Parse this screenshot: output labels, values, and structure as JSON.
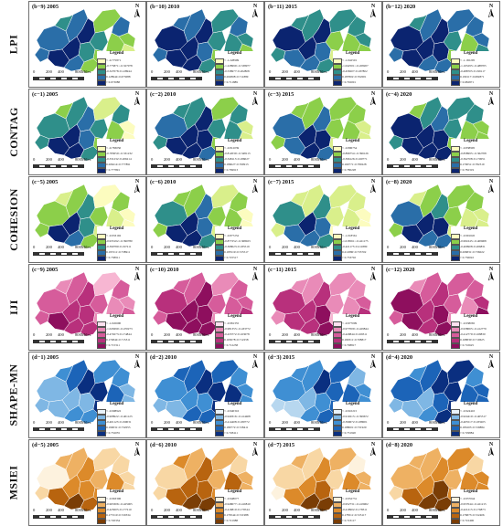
{
  "scale_numbers": [
    "0",
    "200",
    "400",
    "800Miles"
  ],
  "north_label": "N",
  "legend_title": "Legend",
  "rows": [
    {
      "metric": "LPI",
      "colors": [
        "#fcfcbf",
        "#d9ef8b",
        "#8ccf4a",
        "#2f8f8a",
        "#2a6ea8",
        "#0b2470"
      ],
      "panels": [
        {
          "label": "(b−9) 2005",
          "legend": [
            "< -0.775871",
            "-0.775871~-0.327078",
            "-0.327078~0.128944",
            "0.128944~0.673088",
            "> 0.673088"
          ]
        },
        {
          "label": "(b−10) 2010",
          "legend": [
            "< -1.228999",
            "-1.228999~-0.538977",
            "-0.538977~0.202808",
            "0.202808~0.711889",
            "> 0.711889"
          ]
        },
        {
          "label": "(b−11) 2015",
          "legend": [
            "< -1.042501",
            "-1.042501~-0.458207",
            "-0.458207~0.187802",
            "0.187802~0.702001",
            "> 0.702001"
          ]
        },
        {
          "label": "(b−12) 2020",
          "legend": [
            "< -1.165295",
            "-1.165295~-0.488705",
            "-0.488705~0.199117",
            "0.199117~0.682871",
            "> 0.682871"
          ]
        }
      ]
    },
    {
      "metric": "CONTAG",
      "colors": [
        "#fcfcbf",
        "#d9ef8b",
        "#8ccf4a",
        "#2f8f8a",
        "#2a6ea8",
        "#0b2470"
      ],
      "panels": [
        {
          "label": "(c−1) 2005",
          "legend": [
            "< -0.783050",
            "-0.783050~-0.331232",
            "-0.331232~0.206214",
            "0.206214~0.777891",
            "> 0.777891"
          ]
        },
        {
          "label": "(c−2) 2010",
          "legend": [
            "< -0.812039",
            "-0.812039~-0.348113",
            "-0.348113~0.186027",
            "0.186027~0.769913",
            "> 0.769913"
          ]
        },
        {
          "label": "(c−3) 2015",
          "legend": [
            "< -0.896754",
            "-0.896754~-0.396126",
            "-0.396126~0.160771",
            "0.160771~0.780228",
            "> 0.780228"
          ]
        },
        {
          "label": "(c−4) 2020",
          "legend": [
            "< -0.838995",
            "-0.838995~-0.362708",
            "-0.362708~0.170051",
            "0.170051~0.782319",
            "> 0.782319"
          ]
        }
      ]
    },
    {
      "metric": "COHESION",
      "colors": [
        "#fcfcbf",
        "#d9ef8b",
        "#8ccf4a",
        "#2f8f8a",
        "#2a6ea8",
        "#0b2470"
      ],
      "panels": [
        {
          "label": "(c−5) 2005",
          "legend": [
            "< -0.933192",
            "-0.933192~-0.390780",
            "-0.390780~0.197211",
            "0.197211~0.738911",
            "> 0.738911"
          ]
        },
        {
          "label": "(c−6) 2010",
          "legend": [
            "< -0.877252",
            "-0.877252~-0.368023",
            "-0.368023~0.185519",
            "0.185519~0.725517",
            "> 0.725517"
          ]
        },
        {
          "label": "(c−7) 2015",
          "legend": [
            "< -1.018561",
            "-1.018561~-0.421175",
            "-0.421175~0.211880",
            "0.211880~0.733702",
            "> 0.733702"
          ]
        },
        {
          "label": "(c−8) 2020",
          "legend": [
            "< -0.991645",
            "-0.991645~-0.409908",
            "-0.409908~0.206831",
            "0.206831~0.736022",
            "> 0.736022"
          ]
        }
      ]
    },
    {
      "metric": "IJI",
      "colors": [
        "#fde0ef",
        "#f7b6d2",
        "#e98bb8",
        "#d65c9b",
        "#b8307c",
        "#8e0f5e"
      ],
      "panels": [
        {
          "label": "(c−9) 2005",
          "legend": [
            "< -1.045690",
            "-1.045690~-0.470273",
            "-0.470273~0.174844",
            "0.174844~0.715311",
            "> 0.715311"
          ]
        },
        {
          "label": "(c−10) 2010",
          "legend": [
            "< -0.981355",
            "-0.981355~-0.433772",
            "-0.433772~0.163078",
            "0.163078~0.712258",
            "> 0.712258"
          ]
        },
        {
          "label": "(c−11) 2015",
          "legend": [
            "< -0.977009",
            "-0.977009~-0.429844",
            "-0.429844~0.169311",
            "0.169311~0.708817",
            "> 0.708817"
          ]
        },
        {
          "label": "(c−12) 2020",
          "legend": [
            "< -0.938065",
            "-0.938065~-0.412779",
            "-0.412779~0.168830",
            "0.168830~0.710625",
            "> 0.710625"
          ]
        }
      ]
    },
    {
      "metric": "SHAPE-MN",
      "colors": [
        "#eaf3fb",
        "#b7d7ef",
        "#7fb7e4",
        "#3f8fd3",
        "#1c64b8",
        "#0a2f80"
      ],
      "panels": [
        {
          "label": "(d−1) 2005",
          "legend": [
            "< -0.908922",
            "-0.908922~-0.401123",
            "-0.401123~0.190031",
            "0.190031~0.732055",
            "> 0.732055"
          ]
        },
        {
          "label": "(d−2) 2010",
          "legend": [
            "< -0.940316",
            "-0.940316~-0.414408",
            "-0.414408~0.180772",
            "0.180772~0.728411",
            "> 0.728411"
          ]
        },
        {
          "label": "(d−3) 2015",
          "legend": [
            "< -0.910215",
            "-0.910215~-0.399672",
            "-0.399672~0.188001",
            "0.188001~0.731920",
            "> 0.731920"
          ]
        },
        {
          "label": "(d−4) 2020",
          "legend": [
            "< -0.924410",
            "-0.924410~-0.405517",
            "-0.405517~0.183205",
            "0.183205~0.729884",
            "> 0.729884"
          ]
        }
      ]
    },
    {
      "metric": "MSIEI",
      "colors": [
        "#fdf2de",
        "#f8d7a4",
        "#eeb163",
        "#dc8a2a",
        "#b8640f",
        "#7a3d05"
      ],
      "panels": [
        {
          "label": "(d−5) 2005",
          "legend": [
            "< -0.963306",
            "-0.963306~-0.425005",
            "-0.425005~0.177210",
            "0.177210~0.720334",
            "> 0.720334"
          ]
        },
        {
          "label": "(d−6) 2010",
          "legend": [
            "< -0.948077",
            "-0.948077~-0.416810",
            "-0.416810~0.179544",
            "0.179544~0.721988",
            "> 0.721988"
          ]
        },
        {
          "label": "(d−7) 2015",
          "legend": [
            "< -0.952731",
            "-0.952731~-0.419902",
            "-0.419902~0.178311",
            "0.178311~0.723117",
            "> 0.723117"
          ]
        },
        {
          "label": "(d−8) 2020",
          "legend": [
            "< -0.957044",
            "-0.957044~-0.421215",
            "-0.421215~0.176873",
            "0.176873~0.722406",
            "> 0.722406"
          ]
        }
      ]
    }
  ]
}
